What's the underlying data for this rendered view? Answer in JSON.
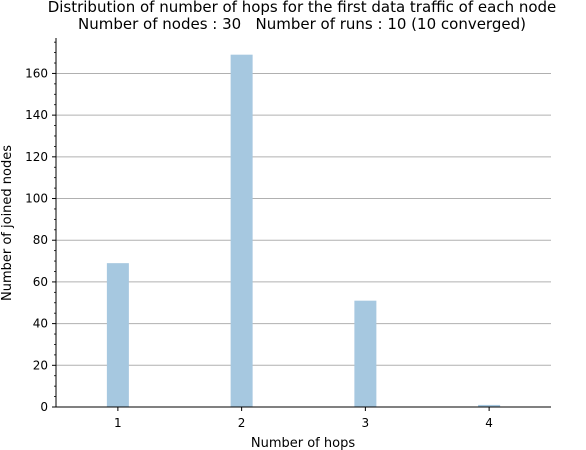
{
  "chart_data": {
    "type": "bar",
    "title": "Distribution of number of hops for the first data traffic of each node",
    "subtitle": "Number of nodes : 30   Number of runs : 10 (10 converged)",
    "xlabel": "Number of hops",
    "ylabel": "Number of joined nodes",
    "categories": [
      1,
      2,
      3,
      4
    ],
    "values": [
      69,
      169,
      51,
      1
    ],
    "xlim": [
      0.5,
      4.5
    ],
    "ylim": [
      0,
      177
    ],
    "yticks": [
      0,
      20,
      40,
      60,
      80,
      100,
      120,
      140,
      160
    ],
    "grid": "horizontal",
    "bar_color": "#a6c8e0",
    "grid_color": "#b0b0b0"
  }
}
